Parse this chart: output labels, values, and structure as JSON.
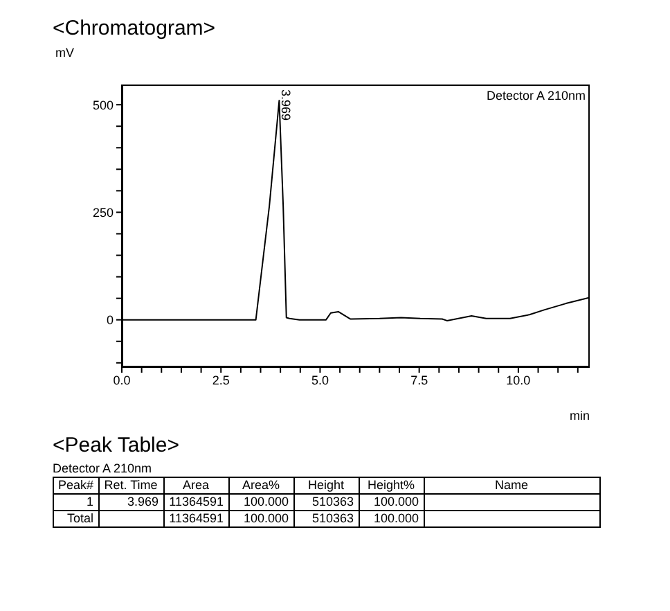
{
  "chart_data": {
    "type": "line",
    "title": "<Chromatogram>",
    "ylabel": "mV",
    "xlabel": "min",
    "x": [
      0,
      1,
      2,
      3,
      3.38,
      3.72,
      3.969,
      4.07,
      4.15,
      4.23,
      4.48,
      5.15,
      5.27,
      5.46,
      5.76,
      6.5,
      7.04,
      7.53,
      8.08,
      8.2,
      8.82,
      9.19,
      9.79,
      10.28,
      10.65,
      11.2,
      11.8
    ],
    "series": [
      {
        "color": "#000000",
        "values": [
          0,
          0,
          0,
          0,
          0,
          264,
          510,
          264,
          5,
          3,
          0,
          0,
          16,
          19,
          2,
          3,
          5,
          3,
          2,
          -2,
          9,
          3,
          3,
          12,
          23,
          38,
          52
        ]
      }
    ],
    "xlim": [
      0,
      11.8
    ],
    "ylim": [
      -110,
      547
    ],
    "xticks": [
      {
        "value": 0,
        "label": "0.0"
      },
      {
        "value": 0.5,
        "label": null
      },
      {
        "value": 1,
        "label": null
      },
      {
        "value": 1.5,
        "label": null
      },
      {
        "value": 2,
        "label": null
      },
      {
        "value": 2.5,
        "label": "2.5"
      },
      {
        "value": 3,
        "label": null
      },
      {
        "value": 3.5,
        "label": null
      },
      {
        "value": 4,
        "label": null
      },
      {
        "value": 4.5,
        "label": null
      },
      {
        "value": 5,
        "label": "5.0"
      },
      {
        "value": 5.5,
        "label": null
      },
      {
        "value": 6,
        "label": null
      },
      {
        "value": 6.5,
        "label": null
      },
      {
        "value": 7,
        "label": null
      },
      {
        "value": 7.5,
        "label": "7.5"
      },
      {
        "value": 8,
        "label": null
      },
      {
        "value": 8.5,
        "label": null
      },
      {
        "value": 9,
        "label": null
      },
      {
        "value": 9.5,
        "label": null
      },
      {
        "value": 10,
        "label": "10.0"
      },
      {
        "value": 10.5,
        "label": null
      },
      {
        "value": 11,
        "label": null
      },
      {
        "value": 11.5,
        "label": null
      }
    ],
    "yticks": [
      {
        "value": -100,
        "label": null
      },
      {
        "value": -50,
        "label": null
      },
      0,
      {
        "value": 50,
        "label": null
      },
      {
        "value": 100,
        "label": null
      },
      {
        "value": 150,
        "label": null
      },
      {
        "value": 200,
        "label": null
      },
      250,
      {
        "value": 300,
        "label": null
      },
      {
        "value": 350,
        "label": null
      },
      {
        "value": 400,
        "label": null
      },
      {
        "value": 450,
        "label": null
      },
      500
    ],
    "marker": "none",
    "line_style": "solid",
    "grid": false,
    "legend": false,
    "annotations": [
      "Detector A 210nm",
      {
        "text": "3.969",
        "x": 3.969,
        "y": 510
      },
      "<Peak Table>",
      "Detector A 210nm",
      "Peak#\tRet. Time\tArea\tArea%\tHeight\tHeight%\tName",
      "1\t3.969\t11364591\t100.000\t510363\t100.000\t",
      "Total\t\t11364591\t100.000\t510363\t100.000\t"
    ]
  }
}
